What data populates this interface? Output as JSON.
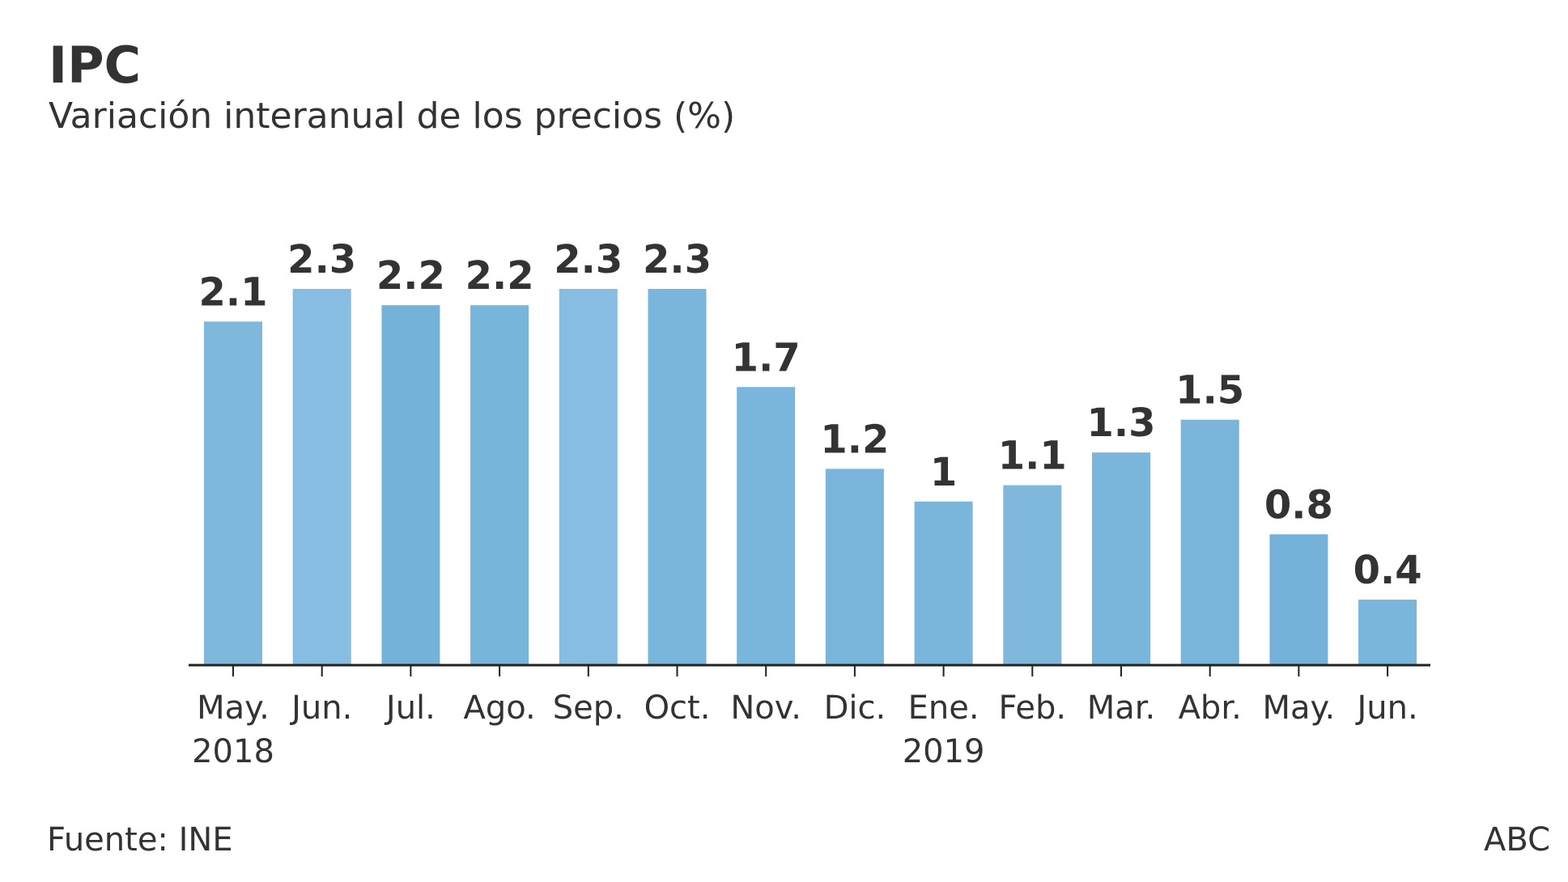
{
  "title": "IPC",
  "subtitle": "Variación interanual de los precios (%)",
  "source": "Fuente: INE",
  "brand": "ABC",
  "chart_data": {
    "type": "bar",
    "categories": [
      "May.",
      "Jun.",
      "Jul.",
      "Ago.",
      "Sep.",
      "Oct.",
      "Nov.",
      "Dic.",
      "Ene.",
      "Feb.",
      "Mar.",
      "Abr.",
      "May.",
      "Jun."
    ],
    "values": [
      2.1,
      2.3,
      2.2,
      2.2,
      2.3,
      2.3,
      1.7,
      1.2,
      1,
      1.1,
      1.3,
      1.5,
      0.8,
      0.4
    ],
    "year_labels": [
      {
        "index": 0,
        "label": "2018"
      },
      {
        "index": 8,
        "label": "2019"
      }
    ],
    "title": "IPC",
    "ylim": [
      0,
      2.3
    ],
    "grid": false,
    "bar_colors": [
      "#80b8dc",
      "#86bde0",
      "#74b2d9",
      "#78b5db",
      "#86bde0",
      "#7ab5dc",
      "#7ab5dc",
      "#7ab5dc",
      "#7ab5dc",
      "#80b8dc",
      "#7ab5dc",
      "#7ab5dc",
      "#74b2d9",
      "#7ab5dc"
    ],
    "label_color": "#333333",
    "axis_color": "#222222"
  }
}
